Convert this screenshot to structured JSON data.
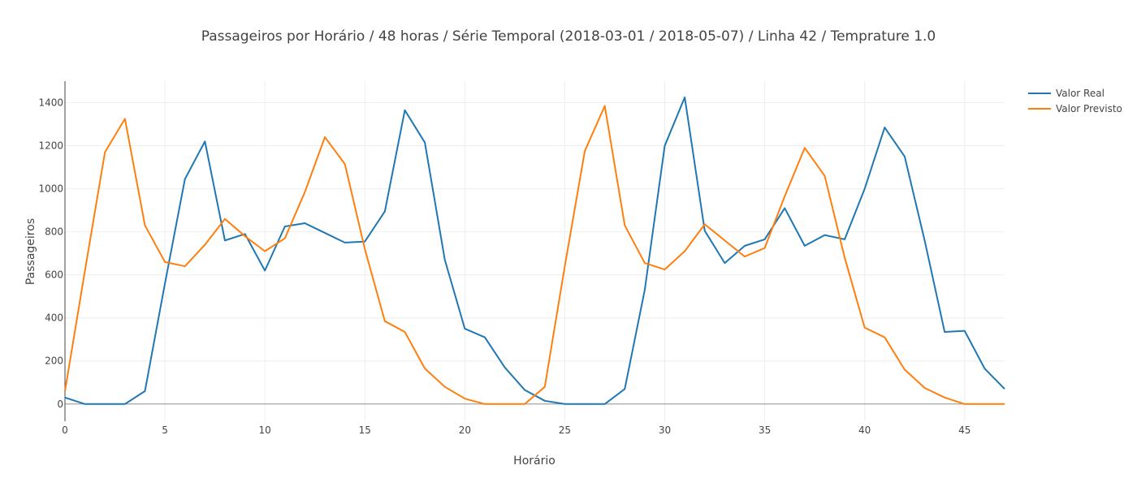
{
  "chart_data": {
    "type": "line",
    "title": "Passageiros por Horário / 48 horas / Série Temporal (2018-03-01 / 2018-05-07) / Linha 42 / Temprature 1.0",
    "xlabel": "Horário",
    "ylabel": "Passageiros",
    "xlim": [
      0,
      47
    ],
    "ylim": [
      -80,
      1500
    ],
    "x_ticks": [
      0,
      5,
      10,
      15,
      20,
      25,
      30,
      35,
      40,
      45
    ],
    "y_ticks": [
      0,
      200,
      400,
      600,
      800,
      1000,
      1200,
      1400
    ],
    "grid": true,
    "legend_position": "top-right",
    "x": [
      0,
      1,
      2,
      3,
      4,
      5,
      6,
      7,
      8,
      9,
      10,
      11,
      12,
      13,
      14,
      15,
      16,
      17,
      18,
      19,
      20,
      21,
      22,
      23,
      24,
      25,
      26,
      27,
      28,
      29,
      30,
      31,
      32,
      33,
      34,
      35,
      36,
      37,
      38,
      39,
      40,
      41,
      42,
      43,
      44,
      45,
      46,
      47
    ],
    "series": [
      {
        "name": "Valor Real",
        "color": "#1f77b4",
        "values": [
          30,
          0,
          0,
          0,
          60,
          560,
          1045,
          1220,
          760,
          790,
          620,
          825,
          840,
          795,
          750,
          755,
          895,
          1365,
          1215,
          670,
          350,
          310,
          170,
          65,
          15,
          0,
          0,
          0,
          70,
          530,
          1200,
          1425,
          805,
          655,
          735,
          765,
          910,
          735,
          785,
          765,
          1000,
          1285,
          1150,
          760,
          335,
          340,
          165,
          70
        ]
      },
      {
        "name": "Valor Previsto",
        "color": "#ff7f0e",
        "values": [
          60,
          620,
          1170,
          1325,
          830,
          660,
          640,
          740,
          860,
          780,
          710,
          770,
          985,
          1240,
          1115,
          720,
          385,
          335,
          165,
          80,
          25,
          0,
          0,
          0,
          80,
          640,
          1175,
          1385,
          830,
          655,
          625,
          710,
          835,
          760,
          685,
          725,
          965,
          1190,
          1060,
          680,
          355,
          310,
          160,
          75,
          30,
          0,
          0,
          0
        ]
      }
    ]
  }
}
